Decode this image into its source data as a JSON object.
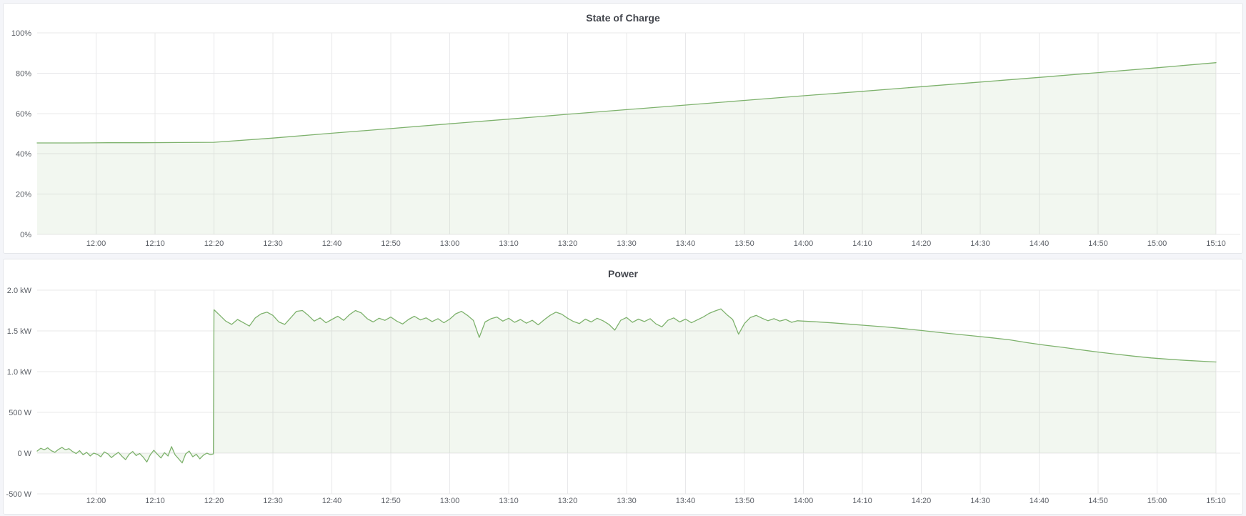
{
  "colors": {
    "series_green": "#7eb26d",
    "fill_opacity": 0.1,
    "grid": "#e8e8ea",
    "axis_text": "#5c6067",
    "title_text": "#44474e",
    "panel_bg": "#ffffff",
    "panel_border": "#e4e6ea",
    "page_bg": "#f4f5f9"
  },
  "panels": [
    {
      "title": "State of Charge"
    },
    {
      "title": "Power"
    }
  ],
  "chart_data": [
    {
      "type": "area",
      "title": "State of Charge",
      "xlabel": "",
      "ylabel": "",
      "unit": "%",
      "grid": true,
      "legend": "none",
      "x_domain_minutes": [
        710,
        910
      ],
      "ylim": [
        0,
        100
      ],
      "baseline_value": 0,
      "x_ticks": {
        "start_minute": 720,
        "step_minutes": 10,
        "labels": [
          "12:00",
          "12:10",
          "12:20",
          "12:30",
          "12:40",
          "12:50",
          "13:00",
          "13:10",
          "13:20",
          "13:30",
          "13:40",
          "13:50",
          "14:00",
          "14:10",
          "14:20",
          "14:30",
          "14:40",
          "14:50",
          "15:00",
          "15:10"
        ]
      },
      "y_ticks": {
        "values": [
          0,
          20,
          40,
          60,
          80,
          100
        ],
        "labels": [
          "0%",
          "20%",
          "40%",
          "60%",
          "80%",
          "100%"
        ]
      },
      "series": [
        {
          "name": "State of Charge",
          "points": [
            [
              710,
              45.4
            ],
            [
              716,
              45.4
            ],
            [
              722,
              45.5
            ],
            [
              728,
              45.5
            ],
            [
              734,
              45.6
            ],
            [
              740,
              45.7
            ],
            [
              750,
              47.8
            ],
            [
              760,
              50.2
            ],
            [
              770,
              52.5
            ],
            [
              780,
              54.9
            ],
            [
              790,
              57.2
            ],
            [
              800,
              59.6
            ],
            [
              810,
              61.9
            ],
            [
              820,
              64.2
            ],
            [
              830,
              66.5
            ],
            [
              840,
              68.8
            ],
            [
              850,
              71.0
            ],
            [
              860,
              73.3
            ],
            [
              870,
              75.6
            ],
            [
              880,
              77.9
            ],
            [
              890,
              80.3
            ],
            [
              900,
              82.7
            ],
            [
              910,
              85.2
            ]
          ]
        }
      ]
    },
    {
      "type": "area",
      "title": "Power",
      "xlabel": "",
      "ylabel": "",
      "unit": "W",
      "grid": true,
      "legend": "none",
      "x_domain_minutes": [
        710,
        910
      ],
      "ylim": [
        -500,
        2000
      ],
      "baseline_value": 0,
      "x_ticks": {
        "start_minute": 720,
        "step_minutes": 10,
        "labels": [
          "12:00",
          "12:10",
          "12:20",
          "12:30",
          "12:40",
          "12:50",
          "13:00",
          "13:10",
          "13:20",
          "13:30",
          "13:40",
          "13:50",
          "14:00",
          "14:10",
          "14:20",
          "14:30",
          "14:40",
          "14:50",
          "15:00",
          "15:10"
        ]
      },
      "y_ticks": {
        "values": [
          -500,
          0,
          500,
          1000,
          1500,
          2000
        ],
        "labels": [
          "-500 W",
          "0 W",
          "500 W",
          "1.0 kW",
          "1.5 kW",
          "2.0 kW"
        ]
      },
      "series": [
        {
          "name": "Power",
          "points": [
            [
              710,
              25
            ],
            [
              710.6,
              60
            ],
            [
              711.2,
              40
            ],
            [
              711.8,
              65
            ],
            [
              712.4,
              30
            ],
            [
              713,
              10
            ],
            [
              713.6,
              45
            ],
            [
              714.2,
              70
            ],
            [
              714.8,
              40
            ],
            [
              715.4,
              55
            ],
            [
              716,
              20
            ],
            [
              716.6,
              -5
            ],
            [
              717.2,
              30
            ],
            [
              717.8,
              -20
            ],
            [
              718.4,
              10
            ],
            [
              719,
              -35
            ],
            [
              719.6,
              0
            ],
            [
              720.2,
              -15
            ],
            [
              720.8,
              -45
            ],
            [
              721.4,
              15
            ],
            [
              722,
              -10
            ],
            [
              722.6,
              -55
            ],
            [
              723.2,
              -20
            ],
            [
              723.8,
              10
            ],
            [
              724.4,
              -40
            ],
            [
              725,
              -80
            ],
            [
              725.6,
              -15
            ],
            [
              726.2,
              20
            ],
            [
              726.8,
              -30
            ],
            [
              727.4,
              -5
            ],
            [
              728,
              -50
            ],
            [
              728.6,
              -110
            ],
            [
              729.2,
              -20
            ],
            [
              729.8,
              35
            ],
            [
              730.4,
              -15
            ],
            [
              731,
              -60
            ],
            [
              731.6,
              5
            ],
            [
              732.2,
              -35
            ],
            [
              732.8,
              80
            ],
            [
              733.4,
              -20
            ],
            [
              734,
              -70
            ],
            [
              734.6,
              -120
            ],
            [
              735.2,
              -10
            ],
            [
              735.8,
              25
            ],
            [
              736.4,
              -45
            ],
            [
              737,
              -15
            ],
            [
              737.6,
              -70
            ],
            [
              738.2,
              -25
            ],
            [
              738.8,
              0
            ],
            [
              739.4,
              -20
            ],
            [
              739.9,
              -10
            ],
            [
              740,
              1760
            ],
            [
              741,
              1690
            ],
            [
              742,
              1620
            ],
            [
              743,
              1580
            ],
            [
              744,
              1640
            ],
            [
              745,
              1600
            ],
            [
              746,
              1560
            ],
            [
              747,
              1660
            ],
            [
              748,
              1710
            ],
            [
              749,
              1730
            ],
            [
              750,
              1690
            ],
            [
              751,
              1610
            ],
            [
              752,
              1580
            ],
            [
              753,
              1660
            ],
            [
              754,
              1740
            ],
            [
              755,
              1750
            ],
            [
              756,
              1690
            ],
            [
              757,
              1620
            ],
            [
              758,
              1660
            ],
            [
              759,
              1600
            ],
            [
              760,
              1640
            ],
            [
              761,
              1680
            ],
            [
              762,
              1630
            ],
            [
              763,
              1700
            ],
            [
              764,
              1750
            ],
            [
              765,
              1720
            ],
            [
              766,
              1650
            ],
            [
              767,
              1610
            ],
            [
              768,
              1655
            ],
            [
              769,
              1630
            ],
            [
              770,
              1670
            ],
            [
              771,
              1620
            ],
            [
              772,
              1585
            ],
            [
              773,
              1640
            ],
            [
              774,
              1680
            ],
            [
              775,
              1635
            ],
            [
              776,
              1660
            ],
            [
              777,
              1615
            ],
            [
              778,
              1650
            ],
            [
              779,
              1600
            ],
            [
              780,
              1645
            ],
            [
              781,
              1710
            ],
            [
              782,
              1740
            ],
            [
              783,
              1690
            ],
            [
              784,
              1630
            ],
            [
              785,
              1420
            ],
            [
              786,
              1610
            ],
            [
              787,
              1650
            ],
            [
              788,
              1670
            ],
            [
              789,
              1620
            ],
            [
              790,
              1655
            ],
            [
              791,
              1605
            ],
            [
              792,
              1640
            ],
            [
              793,
              1595
            ],
            [
              794,
              1630
            ],
            [
              795,
              1575
            ],
            [
              796,
              1635
            ],
            [
              797,
              1690
            ],
            [
              798,
              1730
            ],
            [
              799,
              1705
            ],
            [
              800,
              1655
            ],
            [
              801,
              1615
            ],
            [
              802,
              1590
            ],
            [
              803,
              1645
            ],
            [
              804,
              1610
            ],
            [
              805,
              1655
            ],
            [
              806,
              1625
            ],
            [
              807,
              1580
            ],
            [
              808,
              1510
            ],
            [
              809,
              1630
            ],
            [
              810,
              1665
            ],
            [
              811,
              1605
            ],
            [
              812,
              1645
            ],
            [
              813,
              1615
            ],
            [
              814,
              1650
            ],
            [
              815,
              1585
            ],
            [
              816,
              1550
            ],
            [
              817,
              1630
            ],
            [
              818,
              1660
            ],
            [
              819,
              1610
            ],
            [
              820,
              1645
            ],
            [
              821,
              1600
            ],
            [
              822,
              1635
            ],
            [
              823,
              1670
            ],
            [
              824,
              1715
            ],
            [
              825,
              1745
            ],
            [
              826,
              1770
            ],
            [
              827,
              1700
            ],
            [
              828,
              1640
            ],
            [
              829,
              1460
            ],
            [
              830,
              1590
            ],
            [
              831,
              1665
            ],
            [
              832,
              1690
            ],
            [
              833,
              1655
            ],
            [
              834,
              1625
            ],
            [
              835,
              1650
            ],
            [
              836,
              1620
            ],
            [
              837,
              1640
            ],
            [
              838,
              1605
            ],
            [
              839,
              1625
            ],
            [
              840,
              1620
            ],
            [
              842,
              1612
            ],
            [
              845,
              1598
            ],
            [
              848,
              1582
            ],
            [
              851,
              1565
            ],
            [
              854,
              1548
            ],
            [
              857,
              1528
            ],
            [
              860,
              1505
            ],
            [
              863,
              1482
            ],
            [
              866,
              1460
            ],
            [
              869,
              1438
            ],
            [
              872,
              1415
            ],
            [
              875,
              1390
            ],
            [
              878,
              1355
            ],
            [
              881,
              1325
            ],
            [
              884,
              1298
            ],
            [
              887,
              1268
            ],
            [
              890,
              1240
            ],
            [
              893,
              1215
            ],
            [
              896,
              1190
            ],
            [
              899,
              1168
            ],
            [
              902,
              1152
            ],
            [
              905,
              1138
            ],
            [
              908,
              1126
            ],
            [
              910,
              1118
            ]
          ]
        }
      ]
    }
  ]
}
